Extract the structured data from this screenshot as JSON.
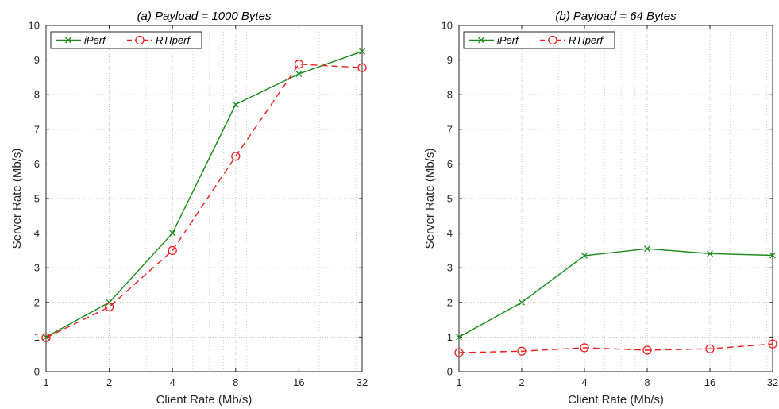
{
  "chart_data": [
    {
      "type": "line",
      "title": "(a) Payload = 1000 Bytes",
      "xlabel": "Client Rate (Mb/s)",
      "ylabel": "Server Rate (Mb/s)",
      "x_scale": "log2",
      "xlim": [
        1,
        32
      ],
      "ylim": [
        0,
        10
      ],
      "x_ticks": [
        1,
        2,
        4,
        8,
        16,
        32
      ],
      "x_tick_labels": [
        "1",
        "2",
        "4",
        "8",
        "16",
        "32"
      ],
      "y_ticks": [
        0,
        1,
        2,
        3,
        4,
        5,
        6,
        7,
        8,
        9,
        10
      ],
      "y_tick_labels": [
        "0",
        "1",
        "2",
        "3",
        "4",
        "5",
        "6",
        "7",
        "8",
        "9",
        "10"
      ],
      "grid": true,
      "legend_position": "top-left",
      "x": [
        1,
        2,
        4,
        8,
        16,
        32
      ],
      "series": [
        {
          "name": "iPerf",
          "values": [
            1.0,
            2.0,
            4.0,
            7.72,
            8.6,
            9.25
          ],
          "color": "#1a8a1a",
          "marker": "x",
          "line": "solid"
        },
        {
          "name": "RTIperf",
          "values": [
            0.98,
            1.87,
            3.5,
            6.22,
            8.88,
            8.78
          ],
          "color": "#ee1c1c",
          "marker": "o",
          "line": "dashed"
        }
      ]
    },
    {
      "type": "line",
      "title": "(b) Payload = 64 Bytes",
      "xlabel": "Client Rate (Mb/s)",
      "ylabel": "Server Rate (Mb/s)",
      "x_scale": "log2",
      "xlim": [
        1,
        32
      ],
      "ylim": [
        0,
        10
      ],
      "x_ticks": [
        1,
        2,
        4,
        8,
        16,
        32
      ],
      "x_tick_labels": [
        "1",
        "2",
        "4",
        "8",
        "16",
        "32"
      ],
      "y_ticks": [
        0,
        1,
        2,
        3,
        4,
        5,
        6,
        7,
        8,
        9,
        10
      ],
      "y_tick_labels": [
        "0",
        "1",
        "2",
        "3",
        "4",
        "5",
        "6",
        "7",
        "8",
        "9",
        "10"
      ],
      "grid": true,
      "legend_position": "top-left",
      "x": [
        1,
        2,
        4,
        8,
        16,
        32
      ],
      "series": [
        {
          "name": "iPerf",
          "values": [
            1.0,
            2.0,
            3.35,
            3.55,
            3.41,
            3.36
          ],
          "color": "#1a8a1a",
          "marker": "x",
          "line": "solid"
        },
        {
          "name": "RTIperf",
          "values": [
            0.55,
            0.59,
            0.69,
            0.62,
            0.66,
            0.8
          ],
          "color": "#ee1c1c",
          "marker": "o",
          "line": "dashed"
        }
      ]
    }
  ]
}
